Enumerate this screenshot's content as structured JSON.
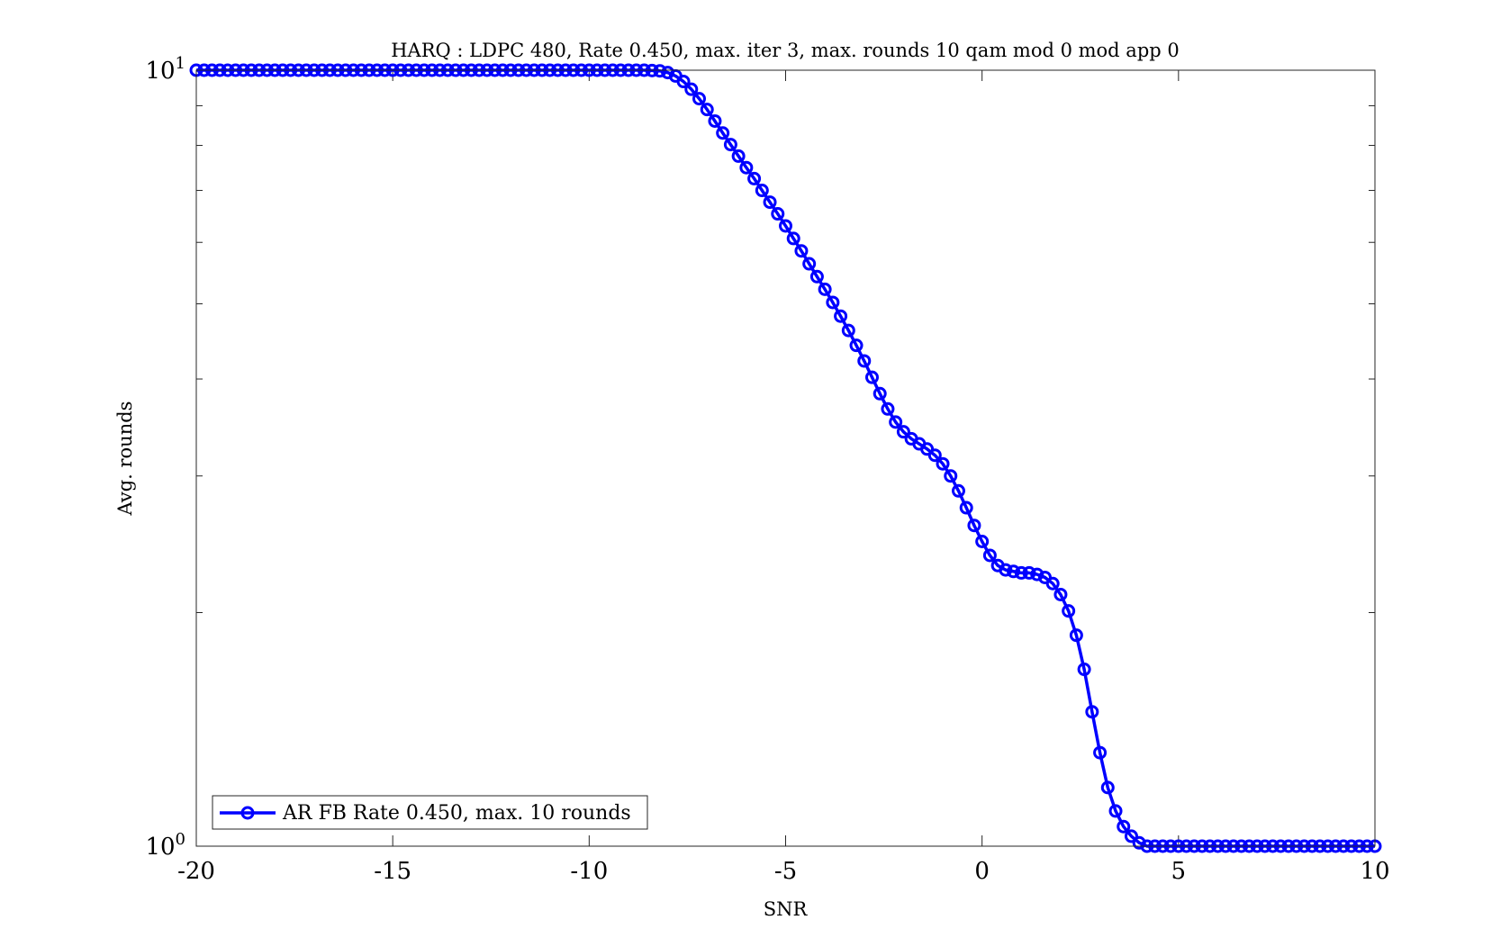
{
  "chart_data": {
    "type": "line",
    "title": "HARQ : LDPC 480, Rate 0.450, max. iter 3, max. rounds 10 qam mod 0 mod app 0",
    "xlabel": "SNR",
    "ylabel": "Avg. rounds",
    "xlim": [
      -20,
      10
    ],
    "ylim": [
      1,
      10
    ],
    "yscale": "log",
    "xticks": [
      -20,
      -15,
      -10,
      -5,
      0,
      5,
      10
    ],
    "xtick_labels": [
      "-20",
      "-15",
      "-10",
      "-5",
      "0",
      "5",
      "10"
    ],
    "yticks": [
      1,
      10
    ],
    "ytick_labels": [
      {
        "base": "10",
        "exp": "0"
      },
      {
        "base": "10",
        "exp": "1"
      }
    ],
    "grid": false,
    "legend": "bottom-left",
    "series": [
      {
        "name": "AR FB Rate 0.450, max. 10 rounds",
        "color": "#0000ff",
        "marker": "circle",
        "points": [
          [
            -20.0,
            10.0
          ],
          [
            -8.6,
            10.0
          ],
          [
            -8.2,
            9.98
          ],
          [
            -8.0,
            9.93
          ],
          [
            -7.8,
            9.83
          ],
          [
            -7.6,
            9.67
          ],
          [
            -7.4,
            9.45
          ],
          [
            -7.2,
            9.19
          ],
          [
            -7.0,
            8.9
          ],
          [
            -6.8,
            8.6
          ],
          [
            -6.6,
            8.3
          ],
          [
            -6.4,
            8.02
          ],
          [
            -6.2,
            7.75
          ],
          [
            -6.0,
            7.49
          ],
          [
            -5.8,
            7.25
          ],
          [
            -5.6,
            7.0
          ],
          [
            -5.4,
            6.76
          ],
          [
            -5.2,
            6.53
          ],
          [
            -5.0,
            6.3
          ],
          [
            -4.8,
            6.07
          ],
          [
            -4.6,
            5.85
          ],
          [
            -4.4,
            5.63
          ],
          [
            -4.2,
            5.42
          ],
          [
            -4.0,
            5.22
          ],
          [
            -3.8,
            5.02
          ],
          [
            -3.6,
            4.82
          ],
          [
            -3.4,
            4.62
          ],
          [
            -3.2,
            4.42
          ],
          [
            -3.0,
            4.22
          ],
          [
            -2.8,
            4.02
          ],
          [
            -2.6,
            3.83
          ],
          [
            -2.4,
            3.66
          ],
          [
            -2.2,
            3.52
          ],
          [
            -2.0,
            3.42
          ],
          [
            -1.8,
            3.35
          ],
          [
            -1.6,
            3.3
          ],
          [
            -1.4,
            3.25
          ],
          [
            -1.2,
            3.19
          ],
          [
            -1.0,
            3.11
          ],
          [
            -0.8,
            3.0
          ],
          [
            -0.6,
            2.87
          ],
          [
            -0.4,
            2.73
          ],
          [
            -0.2,
            2.59
          ],
          [
            0.0,
            2.47
          ],
          [
            0.2,
            2.37
          ],
          [
            0.4,
            2.3
          ],
          [
            0.6,
            2.27
          ],
          [
            0.8,
            2.26
          ],
          [
            1.0,
            2.25
          ],
          [
            1.2,
            2.25
          ],
          [
            1.4,
            2.24
          ],
          [
            1.6,
            2.22
          ],
          [
            1.8,
            2.18
          ],
          [
            2.0,
            2.11
          ],
          [
            2.2,
            2.01
          ],
          [
            2.4,
            1.87
          ],
          [
            2.6,
            1.69
          ],
          [
            2.8,
            1.49
          ],
          [
            3.0,
            1.32
          ],
          [
            3.2,
            1.19
          ],
          [
            3.4,
            1.11
          ],
          [
            3.6,
            1.06
          ],
          [
            3.8,
            1.03
          ],
          [
            4.0,
            1.01
          ],
          [
            4.2,
            1.0
          ],
          [
            10.0,
            1.0
          ]
        ]
      }
    ]
  }
}
